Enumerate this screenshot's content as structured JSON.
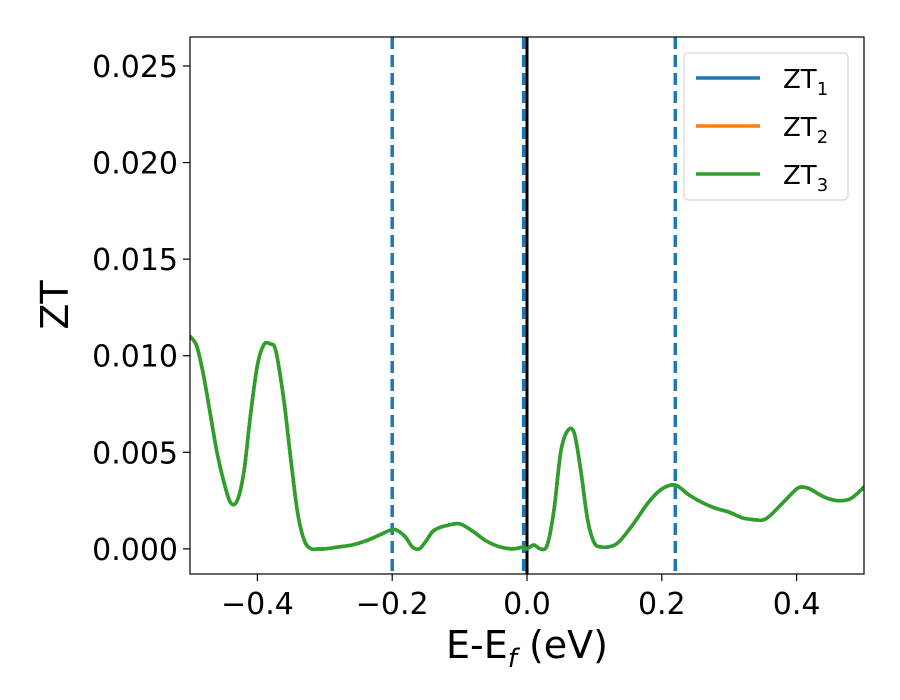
{
  "chart_data": {
    "type": "line",
    "xlabel": "E-E",
    "xlabel_subscript": "f",
    "xlabel_unit": " (eV)",
    "ylabel": "ZT",
    "xlim": [
      -0.5,
      0.5
    ],
    "ylim": [
      -0.0013,
      0.0265
    ],
    "xticks": [
      -0.4,
      -0.2,
      0.0,
      0.2,
      0.4
    ],
    "xtick_labels": [
      "−0.4",
      "−0.2",
      "0.0",
      "0.2",
      "0.4"
    ],
    "yticks": [
      0.0,
      0.005,
      0.01,
      0.015,
      0.02,
      0.025
    ],
    "ytick_labels": [
      "0.000",
      "0.005",
      "0.010",
      "0.015",
      "0.020",
      "0.025"
    ],
    "grid": false,
    "legend_position": "top-right",
    "vlines": [
      {
        "x": -0.2,
        "style": "dashed",
        "color": "#1f77b4"
      },
      {
        "x": -0.005,
        "style": "dashed",
        "color": "#1f77b4"
      },
      {
        "x": 0.0,
        "style": "solid",
        "color": "#000000"
      },
      {
        "x": 0.22,
        "style": "dashed",
        "color": "#1f77b4"
      }
    ],
    "x": [
      -0.5,
      -0.49,
      -0.48,
      -0.47,
      -0.46,
      -0.45,
      -0.44,
      -0.43,
      -0.42,
      -0.41,
      -0.4,
      -0.39,
      -0.38,
      -0.375,
      -0.37,
      -0.36,
      -0.35,
      -0.34,
      -0.33,
      -0.32,
      -0.31,
      -0.3,
      -0.28,
      -0.26,
      -0.24,
      -0.22,
      -0.2,
      -0.19,
      -0.18,
      -0.17,
      -0.16,
      -0.15,
      -0.14,
      -0.13,
      -0.12,
      -0.1,
      -0.08,
      -0.06,
      -0.04,
      -0.02,
      -0.005,
      0.0,
      0.01,
      0.02,
      0.03,
      0.04,
      0.05,
      0.06,
      0.07,
      0.08,
      0.09,
      0.1,
      0.11,
      0.12,
      0.13,
      0.14,
      0.16,
      0.18,
      0.2,
      0.22,
      0.24,
      0.26,
      0.28,
      0.3,
      0.32,
      0.34,
      0.35,
      0.36,
      0.38,
      0.4,
      0.41,
      0.42,
      0.44,
      0.46,
      0.48,
      0.5
    ],
    "series": [
      {
        "name": "ZT",
        "name_subscript": "1",
        "color": "#1f77b4",
        "values": [
          0.011,
          0.0105,
          0.009,
          0.007,
          0.005,
          0.0035,
          0.0024,
          0.0025,
          0.004,
          0.007,
          0.0095,
          0.0106,
          0.0106,
          0.0105,
          0.0098,
          0.0075,
          0.0045,
          0.0018,
          0.0004,
          0.0,
          0.0,
          0.0,
          0.0001,
          0.0002,
          0.0004,
          0.0007,
          0.001,
          0.0009,
          0.0006,
          0.0001,
          0.0,
          0.0004,
          0.0009,
          0.0011,
          0.0012,
          0.0013,
          0.0009,
          0.0004,
          0.0001,
          0.0,
          0.0001,
          0.0,
          0.0002,
          0.0,
          0.0002,
          0.002,
          0.005,
          0.0061,
          0.006,
          0.004,
          0.0015,
          0.0003,
          0.0001,
          0.0001,
          0.0002,
          0.0005,
          0.0014,
          0.0024,
          0.0031,
          0.0033,
          0.0028,
          0.0024,
          0.0021,
          0.0019,
          0.0016,
          0.0015,
          0.0015,
          0.0017,
          0.0024,
          0.0031,
          0.0032,
          0.0031,
          0.0027,
          0.0025,
          0.0026,
          0.0032
        ]
      },
      {
        "name": "ZT",
        "name_subscript": "2",
        "color": "#ff7f0e",
        "values": [
          0.011,
          0.0105,
          0.009,
          0.007,
          0.005,
          0.0035,
          0.0024,
          0.0025,
          0.004,
          0.007,
          0.0095,
          0.0106,
          0.0106,
          0.0105,
          0.0098,
          0.0075,
          0.0045,
          0.0018,
          0.0004,
          0.0,
          0.0,
          0.0,
          0.0001,
          0.0002,
          0.0004,
          0.0007,
          0.001,
          0.0009,
          0.0006,
          0.0001,
          0.0,
          0.0004,
          0.0009,
          0.0011,
          0.0012,
          0.0013,
          0.0009,
          0.0004,
          0.0001,
          0.0,
          0.0001,
          0.0,
          0.0002,
          0.0,
          0.0002,
          0.002,
          0.005,
          0.0061,
          0.006,
          0.004,
          0.0015,
          0.0003,
          0.0001,
          0.0001,
          0.0002,
          0.0005,
          0.0014,
          0.0024,
          0.0031,
          0.0033,
          0.0028,
          0.0024,
          0.0021,
          0.0019,
          0.0016,
          0.0015,
          0.0015,
          0.0017,
          0.0024,
          0.0031,
          0.0032,
          0.0031,
          0.0027,
          0.0025,
          0.0026,
          0.0032
        ]
      },
      {
        "name": "ZT",
        "name_subscript": "3",
        "color": "#2ca02c",
        "values": [
          0.011,
          0.0105,
          0.009,
          0.007,
          0.005,
          0.0035,
          0.0024,
          0.0025,
          0.004,
          0.007,
          0.0095,
          0.0106,
          0.0106,
          0.0105,
          0.0098,
          0.0075,
          0.0045,
          0.0018,
          0.0004,
          0.0,
          0.0,
          0.0,
          0.0001,
          0.0002,
          0.0004,
          0.0007,
          0.001,
          0.0009,
          0.0006,
          0.0001,
          0.0,
          0.0004,
          0.0009,
          0.0011,
          0.0012,
          0.0013,
          0.0009,
          0.0004,
          0.0001,
          0.0,
          0.0001,
          0.0,
          0.0002,
          0.0,
          0.0002,
          0.002,
          0.005,
          0.0061,
          0.006,
          0.004,
          0.0015,
          0.0003,
          0.0001,
          0.0001,
          0.0002,
          0.0005,
          0.0014,
          0.0024,
          0.0031,
          0.0033,
          0.0028,
          0.0024,
          0.0021,
          0.0019,
          0.0016,
          0.0015,
          0.0015,
          0.0017,
          0.0024,
          0.0031,
          0.0032,
          0.0031,
          0.0027,
          0.0025,
          0.0026,
          0.0032
        ]
      }
    ]
  }
}
